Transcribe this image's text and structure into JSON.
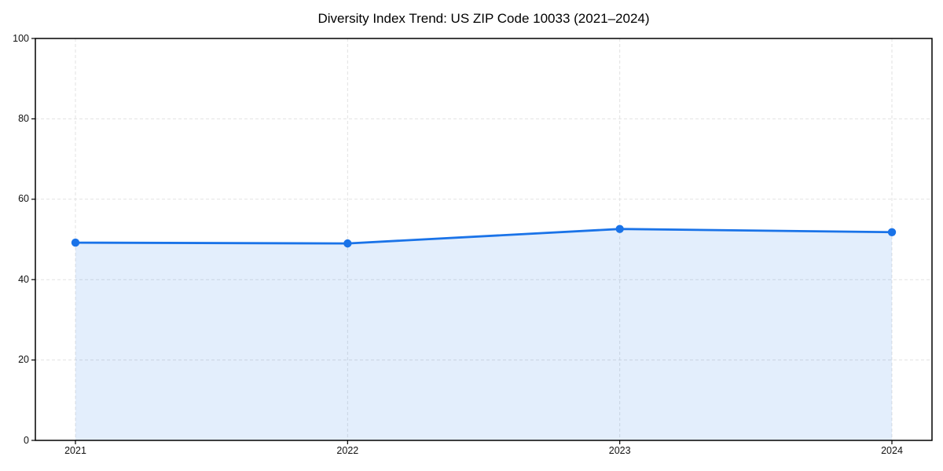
{
  "figure": {
    "background": "#ffffff"
  },
  "chart_data": {
    "type": "area",
    "title": "Diversity Index Trend: US ZIP Code 10033 (2021–2024)",
    "categories": [
      "2021",
      "2022",
      "2023",
      "2024"
    ],
    "values": [
      49.2,
      49.0,
      52.6,
      51.8
    ],
    "xlabel": "",
    "ylabel": "",
    "ylim": [
      0,
      100
    ],
    "yticks": [
      0,
      20,
      40,
      60,
      80,
      100
    ],
    "grid": {
      "visible": true,
      "style": "dashed",
      "color": "#e2e2e2"
    },
    "legend": "none",
    "line_color": "#1a73e8",
    "marker": "circle",
    "marker_color": "#1a73e8",
    "fill_color": "rgba(26,115,232,0.12)",
    "axis_color": "#000000",
    "tick_label_color": "#111111"
  }
}
